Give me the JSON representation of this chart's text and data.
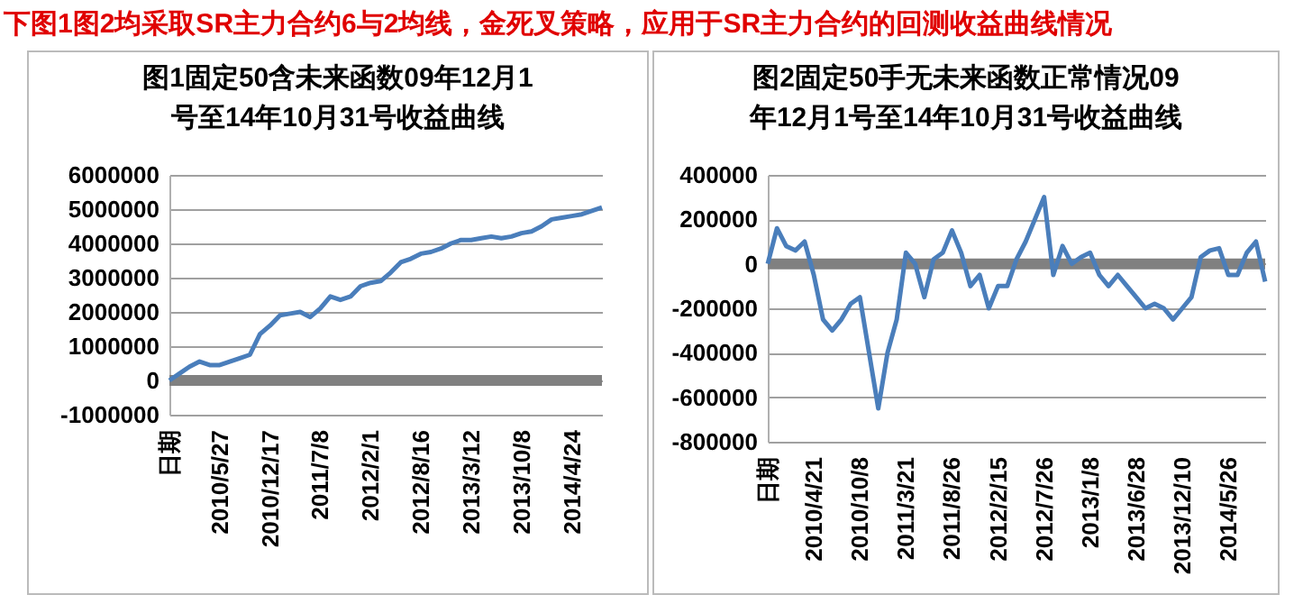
{
  "chart_data": [
    {
      "type": "line",
      "title": "图1固定50含未来函数09年12月1号至14年10月31号收益曲线",
      "annotations": [
        "下图1图2均采取SR主力合约6与2均线，金死叉策略，应用于SR主力合约的回测收益曲线情况"
      ],
      "categories": [
        "日期",
        null,
        null,
        null,
        null,
        "2010/5/27",
        null,
        null,
        null,
        null,
        "2010/12/17",
        null,
        null,
        null,
        null,
        "2011/7/8",
        null,
        null,
        null,
        null,
        "2012/2/1",
        null,
        null,
        null,
        null,
        "2012/8/16",
        null,
        null,
        null,
        null,
        "2013/3/12",
        null,
        null,
        null,
        null,
        "2013/10/8",
        null,
        null,
        null,
        null,
        "2014/4/24",
        null,
        null,
        null
      ],
      "series": [
        {
          "color": "#4a7ebb",
          "values": [
            0,
            200000,
            400000,
            550000,
            450000,
            450000,
            550000,
            650000,
            750000,
            1350000,
            1600000,
            1900000,
            1950000,
            2000000,
            1850000,
            2100000,
            2450000,
            2350000,
            2450000,
            2750000,
            2850000,
            2900000,
            3150000,
            3450000,
            3550000,
            3700000,
            3750000,
            3850000,
            4000000,
            4100000,
            4100000,
            4150000,
            4200000,
            4150000,
            4200000,
            4300000,
            4350000,
            4500000,
            4700000,
            4750000,
            4800000,
            4850000,
            4950000,
            5050000
          ]
        }
      ],
      "ylim": [
        -1000000,
        6000000
      ],
      "yticks": [
        -1000000,
        0,
        1000000,
        2000000,
        3000000,
        4000000,
        5000000,
        6000000
      ],
      "grid": "y",
      "ref_lines": [
        {
          "axis": "y",
          "value": 0,
          "color": "#808080"
        }
      ]
    },
    {
      "type": "line",
      "title": "图2固定50手无未来函数正常情况09年12月1号至14年10月31号收益曲线",
      "categories": [
        "日期",
        null,
        null,
        null,
        null,
        "2010/4/21",
        null,
        null,
        null,
        null,
        "2010/10/8",
        null,
        null,
        null,
        null,
        "2011/3/21",
        null,
        null,
        null,
        null,
        "2011/8/26",
        null,
        null,
        null,
        null,
        "2012/2/15",
        null,
        null,
        null,
        null,
        "2012/7/26",
        null,
        null,
        null,
        null,
        "2013/1/8",
        null,
        null,
        null,
        null,
        "2013/6/28",
        null,
        null,
        null,
        null,
        "2013/12/10",
        null,
        null,
        null,
        null,
        "2014/5/26",
        null,
        null,
        null,
        null
      ],
      "series": [
        {
          "color": "#4a7ebb",
          "values": [
            0,
            160000,
            80000,
            60000,
            100000,
            -50000,
            -250000,
            -300000,
            -250000,
            -180000,
            -150000,
            -400000,
            -650000,
            -400000,
            -250000,
            50000,
            0,
            -150000,
            20000,
            50000,
            150000,
            50000,
            -100000,
            -50000,
            -200000,
            -100000,
            -100000,
            20000,
            100000,
            200000,
            300000,
            -50000,
            80000,
            0,
            30000,
            50000,
            -50000,
            -100000,
            -50000,
            -100000,
            -150000,
            -200000,
            -180000,
            -200000,
            -250000,
            -200000,
            -150000,
            30000,
            60000,
            70000,
            -50000,
            -50000,
            50000,
            100000,
            -80000
          ]
        }
      ],
      "ylim": [
        -800000,
        400000
      ],
      "yticks": [
        -800000,
        -600000,
        -400000,
        -200000,
        0,
        200000,
        400000
      ],
      "grid": "y",
      "ref_lines": [
        {
          "axis": "y",
          "value": 0,
          "color": "#808080"
        }
      ]
    }
  ]
}
